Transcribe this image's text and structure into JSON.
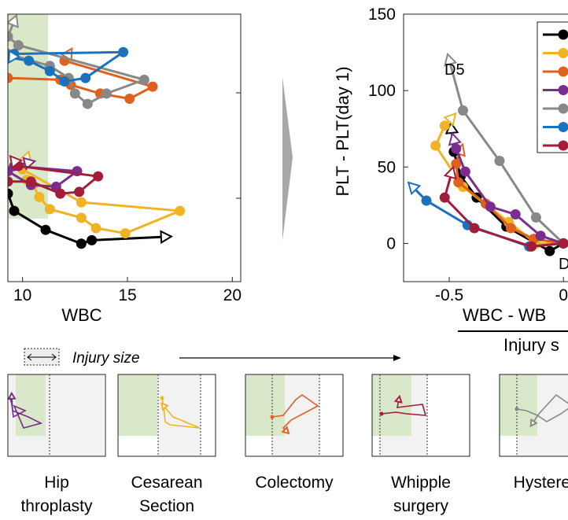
{
  "chart_data": [
    {
      "type": "line",
      "xlabel": "WBC",
      "x_ticks": [
        "10",
        "15",
        "20"
      ],
      "xlim": [
        9.3,
        20.4
      ],
      "ylim": [
        -0.2,
        1.35
      ],
      "shaded_band": {
        "x": [
          9.3,
          11.0
        ],
        "color": "#d9e8c8"
      },
      "series": [
        {
          "color": "#000000",
          "points": [
            [
              9.3,
              0.31
            ],
            [
              9.6,
              0.21
            ],
            [
              11.1,
              0.1
            ],
            [
              12.8,
              0.02
            ],
            [
              13.3,
              0.04
            ],
            [
              16.8,
              0.06
            ]
          ]
        },
        {
          "color": "#f0b323",
          "points": [
            [
              10.2,
              0.39
            ],
            [
              10.5,
              0.36
            ],
            [
              10.8,
              0.29
            ],
            [
              11.3,
              0.22
            ],
            [
              12.8,
              0.17
            ],
            [
              13.5,
              0.11
            ],
            [
              14.9,
              0.08
            ],
            [
              17.5,
              0.21
            ],
            [
              12.8,
              0.26
            ],
            [
              10.0,
              0.45
            ],
            [
              10.2,
              0.52
            ]
          ]
        },
        {
          "color": "#e0601d",
          "points": [
            [
              9.3,
              0.98
            ],
            [
              11.8,
              0.97
            ],
            [
              12.3,
              0.94
            ],
            [
              13.7,
              0.89
            ],
            [
              15.1,
              0.86
            ],
            [
              16.2,
              0.93
            ],
            [
              12.0,
              1.08
            ],
            [
              12.2,
              1.12
            ]
          ]
        },
        {
          "color": "#7b2d8e",
          "points": [
            [
              9.3,
              0.44
            ],
            [
              10.4,
              0.36
            ],
            [
              11.6,
              0.35
            ],
            [
              12.6,
              0.44
            ],
            [
              9.6,
              0.47
            ],
            [
              10.3,
              0.49
            ]
          ]
        },
        {
          "color": "#888888",
          "points": [
            [
              9.3,
              1.12
            ],
            [
              11.3,
              1.05
            ],
            [
              12.2,
              0.98
            ],
            [
              12.5,
              0.89
            ],
            [
              13.1,
              0.83
            ],
            [
              14.0,
              0.89
            ],
            [
              15.8,
              0.97
            ],
            [
              9.8,
              1.17
            ],
            [
              9.3,
              1.22
            ],
            [
              9.6,
              1.31
            ]
          ]
        },
        {
          "color": "#1a72bc",
          "points": [
            [
              9.3,
              1.1
            ],
            [
              10.3,
              1.08
            ],
            [
              11.3,
              1.02
            ],
            [
              12.0,
              0.96
            ],
            [
              13.0,
              0.98
            ],
            [
              14.8,
              1.13
            ],
            [
              9.6,
              1.12
            ],
            [
              9.5,
              1.1
            ]
          ]
        },
        {
          "color": "#a11d3a",
          "points": [
            [
              9.3,
              0.38
            ],
            [
              10.4,
              0.38
            ],
            [
              11.8,
              0.31
            ],
            [
              12.7,
              0.32
            ],
            [
              13.6,
              0.41
            ],
            [
              9.8,
              0.47
            ],
            [
              9.6,
              0.5
            ]
          ]
        }
      ]
    },
    {
      "type": "line",
      "ylabel": "PLT - PLT(day 1)",
      "xlabel": "WBC - WB",
      "xlabel_line2": "Injury s",
      "x_ticks": [
        "-0.5",
        "0"
      ],
      "y_ticks": [
        "0",
        "50",
        "100",
        "150"
      ],
      "xlim": [
        -0.7,
        0.02
      ],
      "ylim": [
        -25,
        150
      ],
      "annotations": [
        "D5",
        "D"
      ],
      "series": [
        {
          "color": "#000000",
          "points": [
            [
              0,
              0
            ],
            [
              -0.06,
              -5
            ],
            [
              -0.25,
              11
            ],
            [
              -0.38,
              30
            ],
            [
              -0.45,
              44
            ],
            [
              -0.48,
              60
            ],
            [
              -0.49,
              75
            ]
          ]
        },
        {
          "color": "#f0b323",
          "points": [
            [
              0,
              0
            ],
            [
              -0.12,
              0
            ],
            [
              -0.24,
              14
            ],
            [
              -0.44,
              37
            ],
            [
              -0.56,
              64
            ],
            [
              -0.52,
              77
            ],
            [
              -0.49,
              82
            ]
          ]
        },
        {
          "color": "#e0601d",
          "points": [
            [
              0,
              0
            ],
            [
              -0.13,
              3
            ],
            [
              -0.23,
              10
            ],
            [
              -0.34,
              26
            ],
            [
              -0.46,
              40
            ],
            [
              -0.47,
              52
            ],
            [
              -0.45,
              61
            ]
          ]
        },
        {
          "color": "#7b2d8e",
          "points": [
            [
              0,
              0
            ],
            [
              -0.1,
              5
            ],
            [
              -0.21,
              19
            ],
            [
              -0.32,
              24
            ],
            [
              -0.43,
              47
            ],
            [
              -0.47,
              62
            ],
            [
              -0.48,
              68
            ]
          ]
        },
        {
          "color": "#888888",
          "points": [
            [
              0,
              0
            ],
            [
              -0.12,
              17
            ],
            [
              -0.28,
              54
            ],
            [
              -0.44,
              87
            ],
            [
              -0.5,
              120
            ]
          ]
        },
        {
          "color": "#1a72bc",
          "points": [
            [
              0,
              0
            ],
            [
              -0.15,
              -2
            ],
            [
              -0.42,
              12
            ],
            [
              -0.6,
              28
            ],
            [
              -0.66,
              37
            ]
          ]
        },
        {
          "color": "#a11d3a",
          "points": [
            [
              0,
              0
            ],
            [
              -0.14,
              -2
            ],
            [
              -0.39,
              10
            ],
            [
              -0.52,
              30
            ],
            [
              -0.49,
              46
            ]
          ]
        }
      ]
    }
  ],
  "injury_header": {
    "label": "Injury size"
  },
  "panels": [
    {
      "label_lines": [
        "Hip",
        "throplasty"
      ],
      "color": "#7b2d8e"
    },
    {
      "label_lines": [
        "Cesarean",
        "Section"
      ],
      "color": "#f0b323"
    },
    {
      "label_lines": [
        "Colectomy"
      ],
      "color": "#e0601d"
    },
    {
      "label_lines": [
        "Whipple",
        "surgery"
      ],
      "color": "#a11d3a"
    },
    {
      "label_lines": [
        "Hysterect"
      ],
      "color": "#888888"
    }
  ]
}
